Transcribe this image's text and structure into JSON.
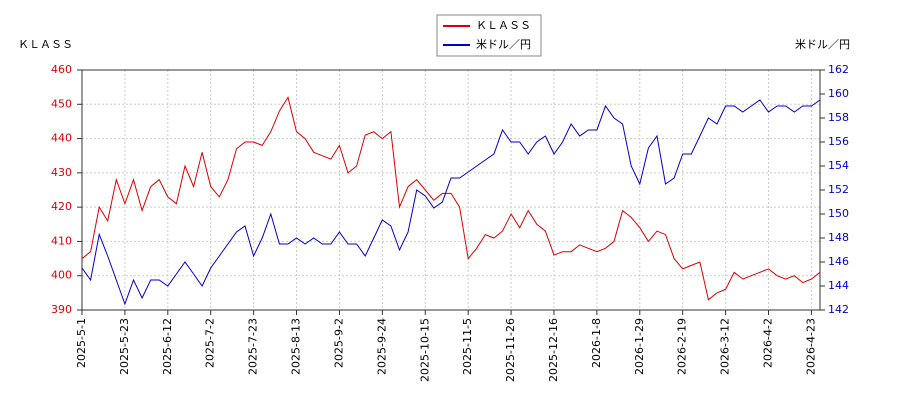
{
  "chart_data": {
    "type": "line",
    "ylabel": "ＫＬＡＳＳ",
    "y2label": "米ドル／円",
    "categories": [
      "2025-5-1",
      null,
      null,
      null,
      null,
      "2025-5-23",
      null,
      null,
      null,
      null,
      "2025-6-12",
      null,
      null,
      null,
      null,
      "2025-7-2",
      null,
      null,
      null,
      null,
      "2025-7-23",
      null,
      null,
      null,
      null,
      "2025-8-13",
      null,
      null,
      null,
      null,
      "2025-9-2",
      null,
      null,
      null,
      null,
      "2025-9-24",
      null,
      null,
      null,
      null,
      "2025-10-15",
      null,
      null,
      null,
      null,
      "2025-11-5",
      null,
      null,
      null,
      null,
      "2025-11-26",
      null,
      null,
      null,
      null,
      "2025-12-16",
      null,
      null,
      null,
      null,
      "2026-1-8",
      null,
      null,
      null,
      null,
      "2026-1-29",
      null,
      null,
      null,
      null,
      "2026-2-19",
      null,
      null,
      null,
      null,
      "2026-3-12",
      null,
      null,
      null,
      null,
      "2026-4-2",
      null,
      null,
      null,
      null,
      "2026-4-23",
      null
    ],
    "series": [
      {
        "name": "ＫＬＡＳＳ",
        "color": "#dd0000",
        "values": [
          405,
          407,
          420,
          416,
          428,
          421,
          428,
          419,
          426,
          428,
          423,
          421,
          432,
          426,
          436,
          426,
          423,
          428,
          437,
          439,
          439,
          438,
          442,
          448,
          452,
          442,
          440,
          436,
          435,
          434,
          438,
          430,
          432,
          441,
          442,
          440,
          442,
          420,
          426,
          428,
          425,
          422,
          424,
          424,
          420,
          405,
          408,
          412,
          411,
          413,
          418,
          414,
          419,
          415,
          413,
          406,
          407,
          407,
          409,
          408,
          407,
          408,
          410,
          419,
          417,
          414,
          410,
          413,
          412,
          405,
          402,
          403,
          404,
          393,
          395,
          396,
          401,
          399,
          400,
          401,
          402,
          400,
          399,
          400,
          398,
          399,
          401
        ]
      },
      {
        "name": "米ドル／円",
        "color": "#0000cc",
        "axis": "y2",
        "values": [
          145.5,
          144.5,
          148.3,
          146.5,
          144.5,
          142.5,
          144.5,
          143,
          144.5,
          144.5,
          144,
          145,
          146,
          145,
          144,
          145.5,
          146.5,
          147.5,
          148.5,
          149,
          146.5,
          148,
          150,
          147.5,
          147.5,
          148,
          147.5,
          148,
          147.5,
          147.5,
          148.5,
          147.5,
          147.5,
          146.5,
          148,
          149.5,
          149,
          147,
          148.5,
          152,
          151.5,
          150.5,
          151,
          153,
          153,
          153.5,
          154,
          154.5,
          155,
          157,
          156,
          156,
          155,
          156,
          156.5,
          155,
          156,
          157.5,
          156.5,
          157,
          157,
          159,
          158,
          157.5,
          154,
          152.5,
          155.5,
          156.5,
          152.5,
          153,
          155,
          155,
          156.5,
          158,
          157.5,
          159,
          159,
          158.5,
          159,
          159.5,
          158.5,
          159,
          159,
          158.5,
          159,
          159,
          159.5
        ]
      }
    ],
    "ylim": [
      390,
      460
    ],
    "yticks": [
      390,
      400,
      410,
      420,
      430,
      440,
      450,
      460
    ],
    "y2lim": [
      142,
      162
    ],
    "y2ticks": [
      142,
      144,
      146,
      148,
      150,
      152,
      154,
      156,
      158,
      160,
      162
    ],
    "grid": true
  }
}
